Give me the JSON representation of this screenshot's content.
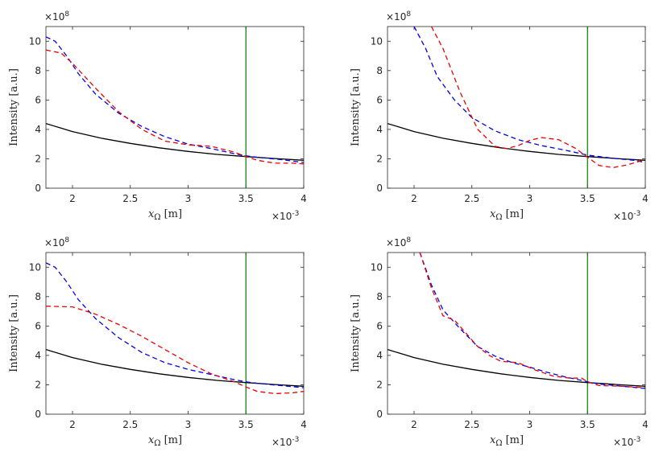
{
  "chart_data": [
    {
      "type": "line",
      "panel": "top-left",
      "xlabel_main": "x",
      "xlabel_sub": "Ω",
      "xlabel_unit": "[m]",
      "ylabel": "Intensity [a.u.]",
      "xlim": [
        1.77,
        4.0
      ],
      "ylim": [
        0,
        11
      ],
      "x_ticks": [
        "2",
        "2.5",
        "3",
        "3.5",
        "4"
      ],
      "y_ticks": [
        "0",
        "2",
        "4",
        "6",
        "8",
        "10"
      ],
      "x_exponent_base": "×10",
      "x_exponent": "-3",
      "y_exponent_base": "×10",
      "y_exponent": "8",
      "vline_x": 3.5,
      "series": [
        {
          "name": "black-solid",
          "color": "#000000",
          "dash": "solid",
          "x": [
            1.77,
            2.0,
            2.25,
            2.5,
            2.75,
            3.0,
            3.25,
            3.5,
            3.75,
            4.0
          ],
          "y": [
            4.4,
            3.85,
            3.4,
            3.05,
            2.75,
            2.5,
            2.3,
            2.15,
            2.02,
            1.9
          ]
        },
        {
          "name": "blue-dashed",
          "color": "#0000ee",
          "dash": "dashed",
          "x": [
            1.77,
            1.85,
            1.95,
            2.05,
            2.2,
            2.4,
            2.6,
            2.8,
            3.0,
            3.2,
            3.4,
            3.5,
            3.6,
            3.8,
            4.0
          ],
          "y": [
            10.3,
            10.0,
            9.0,
            7.8,
            6.4,
            5.1,
            4.2,
            3.5,
            3.0,
            2.7,
            2.35,
            2.2,
            2.1,
            1.95,
            1.75
          ]
        },
        {
          "name": "red-dashed",
          "color": "#ee0000",
          "dash": "dashed",
          "x": [
            1.77,
            1.9,
            2.0,
            2.2,
            2.4,
            2.6,
            2.8,
            3.0,
            3.2,
            3.4,
            3.5,
            3.6,
            3.75,
            3.9,
            4.0
          ],
          "y": [
            9.4,
            9.2,
            8.5,
            6.8,
            5.2,
            4.0,
            3.2,
            2.95,
            2.85,
            2.45,
            2.15,
            1.9,
            1.7,
            1.7,
            1.65
          ]
        }
      ]
    },
    {
      "type": "line",
      "panel": "top-right",
      "xlabel_main": "x",
      "xlabel_sub": "Ω",
      "xlabel_unit": "[m]",
      "ylabel": "Intensity [a.u.]",
      "xlim": [
        1.77,
        4.0
      ],
      "ylim": [
        0,
        11
      ],
      "x_ticks": [
        "2",
        "2.5",
        "3",
        "3.5",
        "4"
      ],
      "y_ticks": [
        "0",
        "2",
        "4",
        "6",
        "8",
        "10"
      ],
      "x_exponent_base": "×10",
      "x_exponent": "-3",
      "y_exponent_base": "×10",
      "y_exponent": "8",
      "vline_x": 3.5,
      "series": [
        {
          "name": "black-solid",
          "color": "#000000",
          "dash": "solid",
          "x": [
            1.77,
            2.0,
            2.25,
            2.5,
            2.75,
            3.0,
            3.25,
            3.5,
            3.75,
            4.0
          ],
          "y": [
            4.4,
            3.85,
            3.4,
            3.05,
            2.75,
            2.5,
            2.3,
            2.15,
            2.02,
            1.9
          ]
        },
        {
          "name": "blue-dashed",
          "color": "#0000ee",
          "dash": "dashed",
          "x": [
            2.0,
            2.1,
            2.2,
            2.35,
            2.5,
            2.7,
            2.9,
            3.1,
            3.3,
            3.5,
            3.7,
            3.9,
            4.0
          ],
          "y": [
            11.0,
            9.5,
            7.6,
            6.0,
            4.8,
            3.9,
            3.3,
            2.9,
            2.6,
            2.25,
            2.05,
            1.9,
            1.75
          ]
        },
        {
          "name": "red-dashed",
          "color": "#ee0000",
          "dash": "dashed",
          "x": [
            2.15,
            2.25,
            2.4,
            2.55,
            2.7,
            2.8,
            2.9,
            3.0,
            3.1,
            3.25,
            3.4,
            3.5,
            3.6,
            3.72,
            3.85,
            4.0
          ],
          "y": [
            11.0,
            9.5,
            6.5,
            4.0,
            2.85,
            2.7,
            2.9,
            3.25,
            3.45,
            3.3,
            2.7,
            2.1,
            1.55,
            1.4,
            1.6,
            1.95
          ]
        }
      ]
    },
    {
      "type": "line",
      "panel": "bottom-left",
      "xlabel_main": "x",
      "xlabel_sub": "Ω",
      "xlabel_unit": "[m]",
      "ylabel": "Intensity [a.u.]",
      "xlim": [
        1.77,
        4.0
      ],
      "ylim": [
        0,
        11
      ],
      "x_ticks": [
        "2",
        "2.5",
        "3",
        "3.5",
        "4"
      ],
      "y_ticks": [
        "0",
        "2",
        "4",
        "6",
        "8",
        "10"
      ],
      "x_exponent_base": "×10",
      "x_exponent": "-3",
      "y_exponent_base": "×10",
      "y_exponent": "8",
      "vline_x": 3.5,
      "series": [
        {
          "name": "black-solid",
          "color": "#000000",
          "dash": "solid",
          "x": [
            1.77,
            2.0,
            2.25,
            2.5,
            2.75,
            3.0,
            3.25,
            3.5,
            3.75,
            4.0
          ],
          "y": [
            4.4,
            3.85,
            3.4,
            3.05,
            2.75,
            2.5,
            2.3,
            2.15,
            2.02,
            1.9
          ]
        },
        {
          "name": "blue-dashed",
          "color": "#0000ee",
          "dash": "dashed",
          "x": [
            1.77,
            1.85,
            1.95,
            2.05,
            2.2,
            2.4,
            2.6,
            2.8,
            3.0,
            3.2,
            3.4,
            3.5,
            3.6,
            3.8,
            4.0
          ],
          "y": [
            10.3,
            10.0,
            9.0,
            7.8,
            6.5,
            5.2,
            4.2,
            3.5,
            3.05,
            2.7,
            2.35,
            2.2,
            2.1,
            1.95,
            1.8
          ]
        },
        {
          "name": "red-dashed",
          "color": "#ee0000",
          "dash": "dashed",
          "x": [
            1.77,
            2.0,
            2.2,
            2.4,
            2.6,
            2.8,
            3.0,
            3.2,
            3.4,
            3.5,
            3.6,
            3.75,
            3.9,
            4.0
          ],
          "y": [
            7.35,
            7.3,
            6.8,
            6.1,
            5.3,
            4.4,
            3.5,
            2.75,
            2.2,
            1.85,
            1.55,
            1.4,
            1.45,
            1.55
          ]
        }
      ]
    },
    {
      "type": "line",
      "panel": "bottom-right",
      "xlabel_main": "x",
      "xlabel_sub": "Ω",
      "xlabel_unit": "[m]",
      "ylabel": "Intensity [a.u.]",
      "xlim": [
        1.77,
        4.0
      ],
      "ylim": [
        0,
        11
      ],
      "x_ticks": [
        "2",
        "2.5",
        "3",
        "3.5",
        "4"
      ],
      "y_ticks": [
        "0",
        "2",
        "4",
        "6",
        "8",
        "10"
      ],
      "x_exponent_base": "×10",
      "x_exponent": "-3",
      "y_exponent_base": "×10",
      "y_exponent": "8",
      "vline_x": 3.5,
      "series": [
        {
          "name": "black-solid",
          "color": "#000000",
          "dash": "solid",
          "x": [
            1.77,
            2.0,
            2.25,
            2.5,
            2.75,
            3.0,
            3.25,
            3.5,
            3.75,
            4.0
          ],
          "y": [
            4.4,
            3.85,
            3.4,
            3.05,
            2.75,
            2.5,
            2.3,
            2.15,
            2.02,
            1.9
          ]
        },
        {
          "name": "blue-dashed",
          "color": "#0000ee",
          "dash": "dashed",
          "x": [
            2.05,
            2.15,
            2.25,
            2.4,
            2.55,
            2.7,
            2.85,
            3.0,
            3.15,
            3.3,
            3.45,
            3.5,
            3.6,
            3.8,
            4.0
          ],
          "y": [
            11.0,
            8.8,
            7.1,
            5.8,
            4.6,
            3.95,
            3.5,
            3.2,
            2.85,
            2.55,
            2.3,
            2.2,
            2.05,
            1.9,
            1.75
          ]
        },
        {
          "name": "red-dashed",
          "color": "#ee0000",
          "dash": "dashed",
          "x": [
            2.05,
            2.15,
            2.25,
            2.35,
            2.45,
            2.55,
            2.65,
            2.75,
            2.9,
            3.05,
            3.2,
            3.35,
            3.45,
            3.5,
            3.6,
            3.8,
            4.0
          ],
          "y": [
            11.0,
            8.6,
            6.7,
            6.4,
            5.5,
            4.6,
            4.0,
            3.6,
            3.5,
            3.0,
            2.6,
            2.45,
            2.45,
            2.2,
            1.95,
            1.9,
            1.8
          ]
        }
      ]
    }
  ]
}
